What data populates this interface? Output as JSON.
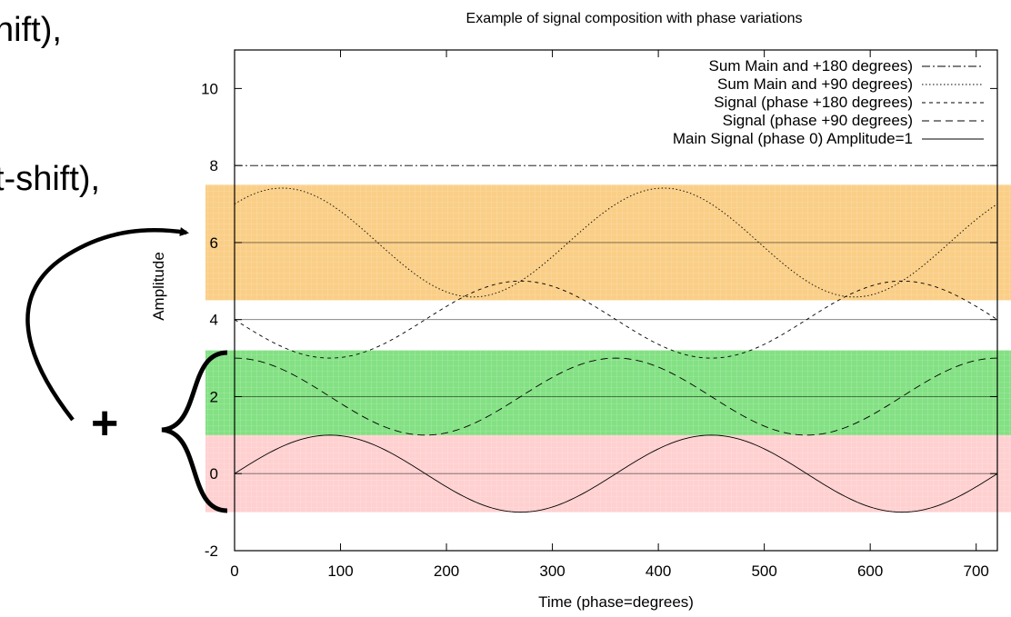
{
  "slide": {
    "fragment_1": "hift),",
    "fragment_2": "t-shift),",
    "plus_sign": "+"
  },
  "chart_data": {
    "type": "line",
    "title": "Example of signal composition with phase variations",
    "xlabel": "Time (phase=degrees)",
    "ylabel": "Amplitude",
    "xlim": [
      0,
      720
    ],
    "ylim": [
      -2,
      11
    ],
    "xticks": [
      0,
      100,
      200,
      300,
      400,
      500,
      600,
      700
    ],
    "yticks": [
      -2,
      0,
      2,
      4,
      6,
      8,
      10
    ],
    "legend_position": "top-right",
    "series": [
      {
        "name": "Sum Main and +180 degrees)",
        "style": "dash-dot",
        "offset": 8,
        "formula": "sin(x)+sin(x+180)",
        "x": [
          0,
          720
        ],
        "y": [
          0,
          0
        ]
      },
      {
        "name": "Sum Main and +90 degrees)",
        "style": "dotted",
        "offset": 6,
        "formula": "sin(x)+sin(x+90)",
        "x": [
          0,
          45,
          90,
          180,
          225,
          270,
          360,
          405,
          450,
          540,
          585,
          630,
          720
        ],
        "y": [
          1,
          1.41,
          1,
          -1,
          -1.41,
          -1,
          1,
          1.41,
          1,
          -1,
          -1.41,
          -1,
          1
        ]
      },
      {
        "name": "Signal (phase +180 degrees)",
        "style": "short-dash",
        "offset": 4,
        "formula": "sin(x+180)",
        "x": [
          0,
          90,
          180,
          270,
          360,
          450,
          540,
          630,
          720
        ],
        "y": [
          0,
          -1,
          0,
          1,
          0,
          -1,
          0,
          1,
          0
        ]
      },
      {
        "name": "Signal (phase +90 degrees)",
        "style": "long-dash",
        "offset": 2,
        "formula": "sin(x+90)",
        "x": [
          0,
          90,
          180,
          270,
          360,
          450,
          540,
          630,
          720
        ],
        "y": [
          1,
          0,
          -1,
          0,
          1,
          0,
          -1,
          0,
          1
        ]
      },
      {
        "name": "Main Signal (phase 0) Amplitude=1",
        "style": "solid",
        "offset": 0,
        "formula": "sin(x)",
        "x": [
          0,
          90,
          180,
          270,
          360,
          450,
          540,
          630,
          720
        ],
        "y": [
          0,
          1,
          0,
          -1,
          0,
          1,
          0,
          -1,
          0
        ]
      }
    ],
    "bands": [
      {
        "color": "#f5a623",
        "y_range": [
          4.5,
          7.5
        ]
      },
      {
        "color": "#1ec81e",
        "y_range": [
          1,
          3.2
        ]
      },
      {
        "color": "#ffaaaa",
        "y_range": [
          -1,
          1
        ]
      }
    ],
    "colors": {
      "axis": "#000000",
      "series_line": "#000000",
      "brace": "#000000"
    }
  }
}
